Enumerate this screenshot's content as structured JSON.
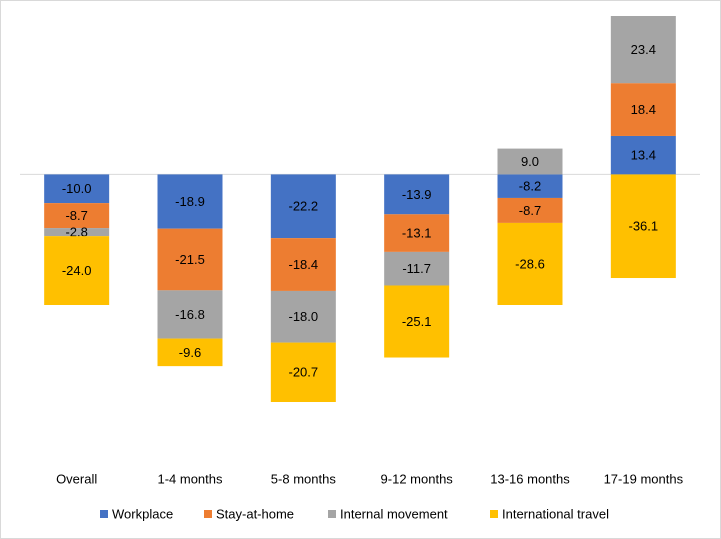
{
  "chart_data": {
    "type": "stacked-bar",
    "categories": [
      "Overall",
      "1-4 months",
      "5-8 months",
      "9-12 months",
      "13-16 months",
      "17-19 months"
    ],
    "series": [
      {
        "name": "Workplace",
        "color": "#4472c4",
        "values": [
          -10,
          -18.9,
          -22.2,
          -13.9,
          -8.2,
          13.4
        ],
        "value_labels": [
          "-10.0",
          "-18.9",
          "-22.2",
          "-13.9",
          "-8.2",
          "13.4"
        ]
      },
      {
        "name": "Stay-at-home",
        "color": "#ed7d31",
        "values": [
          -8.7,
          -21.5,
          -18.4,
          -13.1,
          -8.7,
          18.4
        ],
        "value_labels": [
          "-8.7",
          "-21.5",
          "-18.4",
          "-13.1",
          "-8.7",
          "18.4"
        ]
      },
      {
        "name": "Internal movement",
        "color": "#a5a5a5",
        "values": [
          -2.8,
          -16.8,
          -18,
          -11.7,
          9,
          23.4
        ],
        "value_labels": [
          "-2.8",
          "-16.8",
          "-18.0",
          "-11.7",
          "9.0",
          "23.4"
        ]
      },
      {
        "name": "International travel",
        "color": "#ffc000",
        "values": [
          -24,
          -9.6,
          -20.7,
          -25.1,
          -28.6,
          -36.1
        ],
        "value_labels": [
          "-24.0",
          "-9.6",
          "-20.7",
          "-25.1",
          "-28.6",
          "-36.1"
        ]
      }
    ],
    "legend": "bottom"
  }
}
